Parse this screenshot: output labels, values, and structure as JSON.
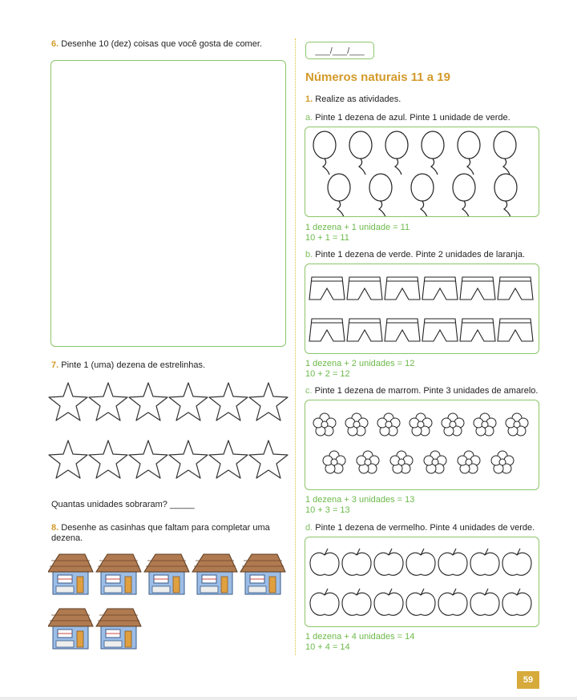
{
  "left": {
    "q6": {
      "num": "6.",
      "text": "Desenhe 10 (dez) coisas que você gosta de comer."
    },
    "q7": {
      "num": "7.",
      "text": "Pinte 1 (uma) dezena de estrelinhas.",
      "question": "Quantas unidades sobraram?",
      "blank": "_____"
    },
    "q8": {
      "num": "8.",
      "text": "Desenhe as casinhas que faltam para completar uma dezena."
    }
  },
  "right": {
    "date": "___/___/___",
    "title": "Números naturais 11 a 19",
    "q1": {
      "num": "1.",
      "text": "Realize as atividades."
    },
    "a": {
      "letter": "a.",
      "text": "Pinte 1 dezena de azul. Pinte 1 unidade de verde.",
      "eq1": "1 dezena + 1 unidade = 11",
      "eq2": "10 + 1 = 11"
    },
    "b": {
      "letter": "b.",
      "text": "Pinte 1 dezena de verde. Pinte 2 unidades de laranja.",
      "eq1": "1 dezena + 2 unidades = 12",
      "eq2": "10 + 2 = 12"
    },
    "c": {
      "letter": "c.",
      "text": "Pinte 1 dezena de marrom. Pinte 3 unidades de amarelo.",
      "eq1": "1 dezena + 3 unidades = 13",
      "eq2": "10 + 3 = 13"
    },
    "d": {
      "letter": "d.",
      "text": "Pinte 1 dezena de vermelho. Pinte 4 unidades de verde.",
      "eq1": "1 dezena + 4 unidades = 14",
      "eq2": "10 + 4 = 14"
    }
  },
  "page_number": "59"
}
